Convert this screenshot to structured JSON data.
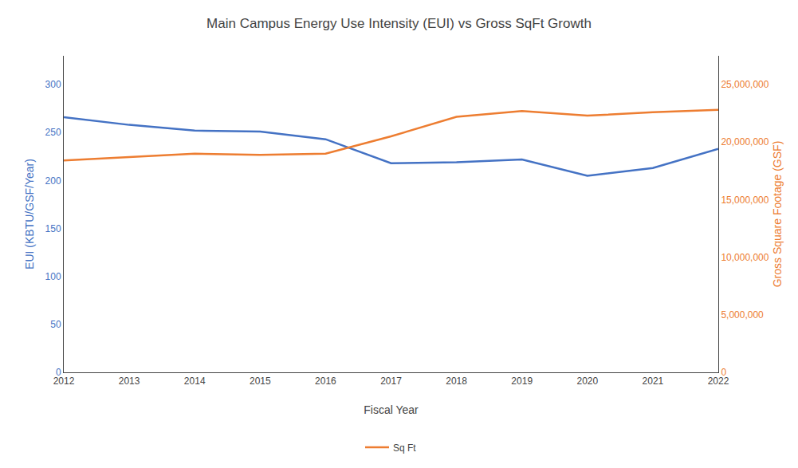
{
  "chart_data": {
    "type": "line",
    "title": "Main Campus Energy Use Intensity (EUI) vs Gross SqFt Growth",
    "xlabel": "Fiscal Year",
    "ylabel": "EUI (KBTU/GSF/Year)",
    "y2label": "Gross Square Footage (GSF)",
    "x": [
      2012,
      2013,
      2014,
      2015,
      2016,
      2017,
      2018,
      2019,
      2020,
      2021,
      2022
    ],
    "xlim": [
      2012,
      2022
    ],
    "xticks": [
      2012,
      2013,
      2014,
      2015,
      2016,
      2017,
      2018,
      2019,
      2020,
      2021,
      2022
    ],
    "ylim": [
      0,
      330
    ],
    "yticks": [
      0,
      50,
      100,
      150,
      200,
      250,
      300
    ],
    "y2lim": [
      0,
      27500000
    ],
    "y2ticks": [
      0,
      {
        "value": 5000000,
        "label": "5,000,000"
      },
      {
        "value": 10000000,
        "label": "10,000,000"
      },
      {
        "value": 15000000,
        "label": "15,000,000"
      },
      {
        "value": 20000000,
        "label": "20,000,000"
      },
      {
        "value": 25000000,
        "label": "25,000,000"
      }
    ],
    "grid": false,
    "legend": "bottom",
    "series": [
      {
        "color": "#4472C4",
        "values": [
          266,
          258,
          252,
          251,
          243,
          218,
          219,
          222,
          205,
          213,
          233
        ]
      },
      {
        "name": "Sq Ft",
        "color": "#ED7D31",
        "axis": "y2",
        "values": [
          18400000,
          18700000,
          19000000,
          18900000,
          19000000,
          20500000,
          22200000,
          22700000,
          22300000,
          22600000,
          22800000
        ]
      }
    ]
  }
}
